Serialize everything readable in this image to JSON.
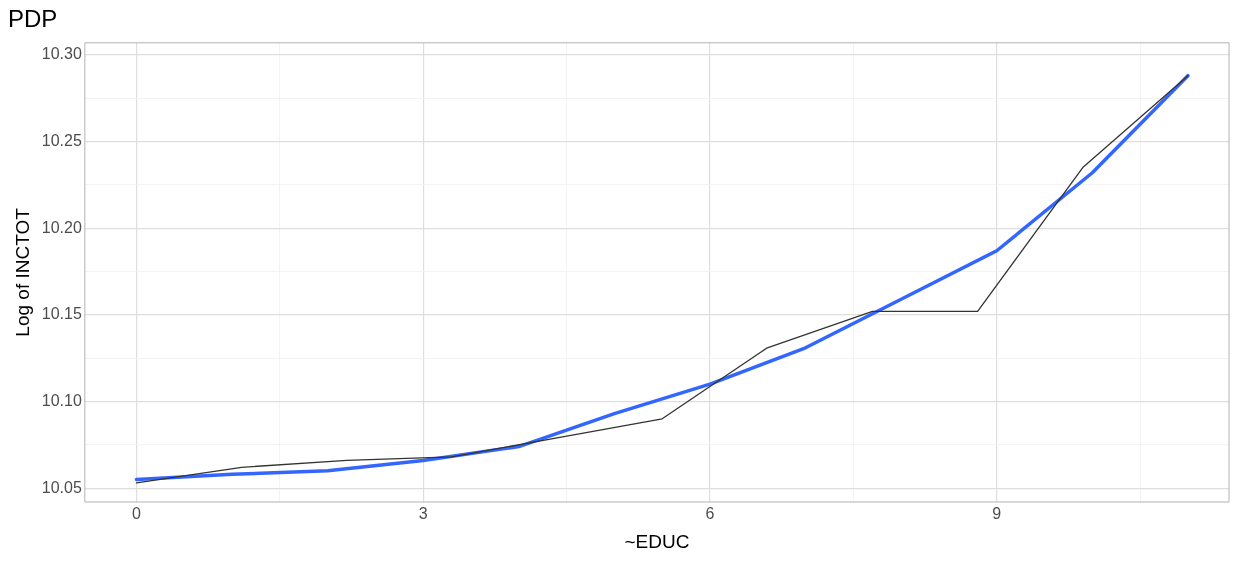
{
  "chart_data": {
    "type": "line",
    "title": "PDP",
    "xlabel": "~EDUC",
    "ylabel": "Log of INCTOT",
    "series": [
      {
        "color": "#333333",
        "x": [
          0,
          1.1,
          2.2,
          3.3,
          4.4,
          5.5,
          6.6,
          7.7,
          8.8,
          9.9,
          11
        ],
        "values": [
          10.053,
          10.062,
          10.066,
          10.068,
          10.079,
          10.09,
          10.131,
          10.152,
          10.152,
          10.235,
          10.288
        ]
      },
      {
        "color": "#3366ff",
        "x": [
          0,
          1,
          2,
          3,
          4,
          5,
          6,
          7,
          8,
          9,
          10,
          11
        ],
        "values": [
          10.055,
          10.058,
          10.06,
          10.066,
          10.074,
          10.093,
          10.11,
          10.131,
          10.159,
          10.187,
          10.232,
          10.288
        ]
      }
    ],
    "xlim": [
      -0.54,
      11.43
    ],
    "xticks": [
      0,
      {
        "value": 1.5,
        "label": null
      },
      3,
      {
        "value": 4.5,
        "label": null
      },
      6,
      {
        "value": 7.5,
        "label": null
      },
      9,
      {
        "value": 10.5,
        "label": null
      }
    ],
    "ylim": [
      10.042,
      10.307
    ],
    "yticks": [
      {
        "value": 10.05,
        "label": "10.05"
      },
      {
        "value": 10.075,
        "label": null
      },
      {
        "value": 10.1,
        "label": "10.10"
      },
      {
        "value": 10.125,
        "label": null
      },
      {
        "value": 10.15,
        "label": "10.15"
      },
      {
        "value": 10.175,
        "label": null
      },
      {
        "value": 10.2,
        "label": "10.20"
      },
      {
        "value": 10.225,
        "label": null
      },
      {
        "value": 10.25,
        "label": "10.25"
      },
      {
        "value": 10.275,
        "label": null
      },
      {
        "value": 10.3,
        "label": "10.30"
      }
    ],
    "grid": true,
    "legend": false,
    "marker": "none",
    "line_style": "solid"
  }
}
